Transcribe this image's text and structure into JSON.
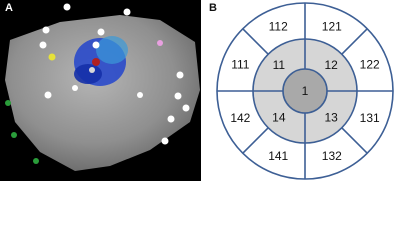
{
  "panels": {
    "a": "A",
    "b": "B"
  },
  "bullseye": {
    "center": "1",
    "inner": [
      "11",
      "12",
      "13",
      "14"
    ],
    "outer": [
      "111",
      "112",
      "121",
      "122",
      "131",
      "132",
      "141",
      "142"
    ]
  }
}
